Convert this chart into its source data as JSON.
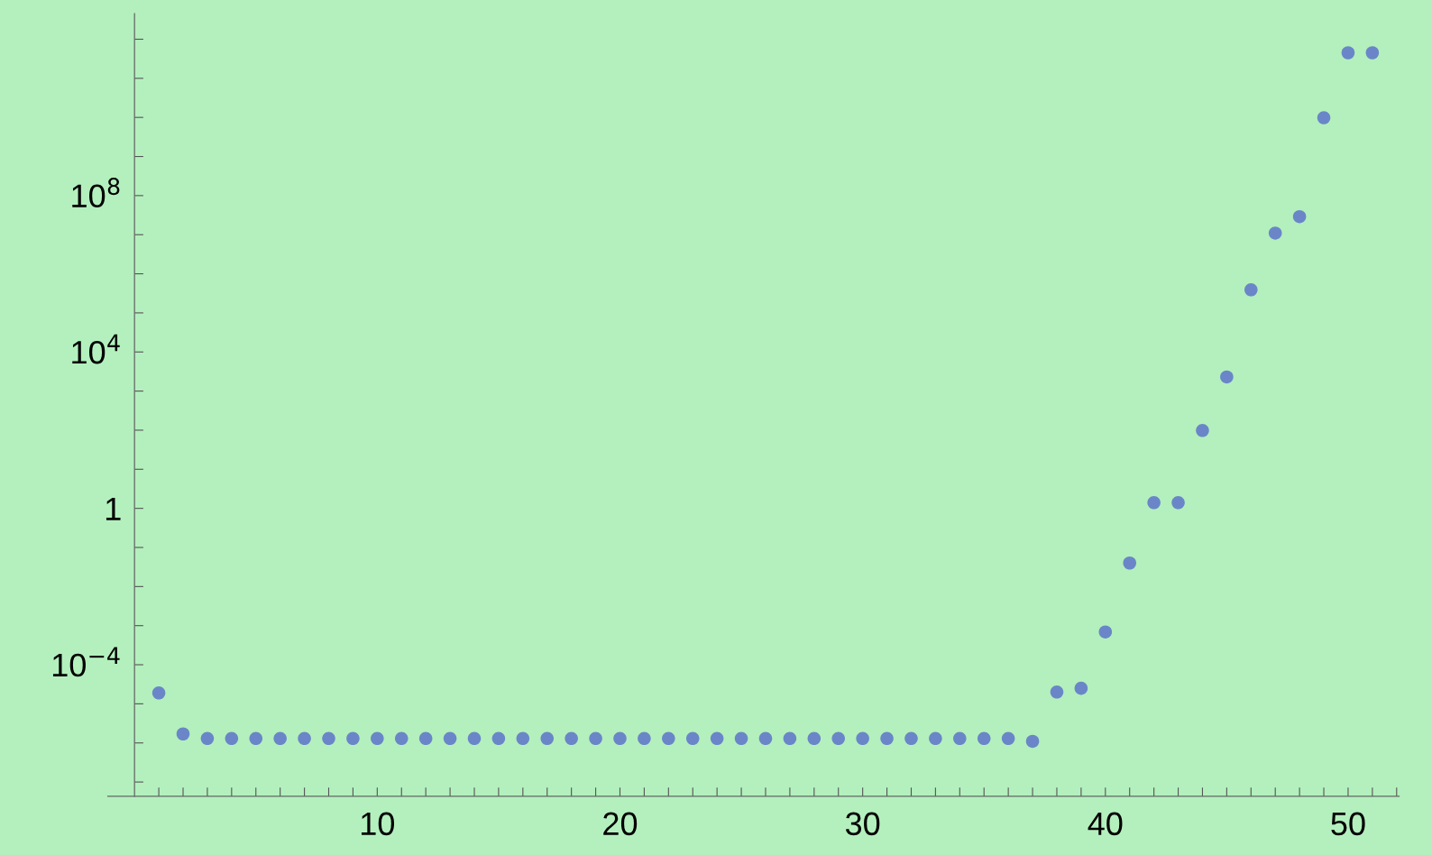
{
  "chart_data": {
    "type": "scatter",
    "marker": "circle",
    "log": "y",
    "grid": false,
    "x": [
      1,
      2,
      3,
      4,
      5,
      6,
      7,
      8,
      9,
      10,
      11,
      12,
      13,
      14,
      15,
      16,
      17,
      18,
      19,
      20,
      21,
      22,
      23,
      24,
      25,
      26,
      27,
      28,
      29,
      30,
      31,
      32,
      33,
      34,
      35,
      36,
      37,
      38,
      39,
      40,
      41,
      42,
      43,
      44,
      45,
      46,
      47,
      48,
      49,
      50,
      51
    ],
    "series": [
      {
        "color": "#6a86c8",
        "values": [
          1.9e-05,
          1.7e-06,
          1.3e-06,
          1.3e-06,
          1.3e-06,
          1.3e-06,
          1.3e-06,
          1.3e-06,
          1.3e-06,
          1.3e-06,
          1.3e-06,
          1.3e-06,
          1.3e-06,
          1.3e-06,
          1.3e-06,
          1.3e-06,
          1.3e-06,
          1.3e-06,
          1.3e-06,
          1.3e-06,
          1.3e-06,
          1.3e-06,
          1.3e-06,
          1.3e-06,
          1.3e-06,
          1.3e-06,
          1.3e-06,
          1.3e-06,
          1.3e-06,
          1.3e-06,
          1.3e-06,
          1.3e-06,
          1.3e-06,
          1.3e-06,
          1.3e-06,
          1.3e-06,
          1.1e-06,
          2e-05,
          2.5e-05,
          0.00069,
          0.04,
          1.4,
          1.4,
          98,
          2300,
          390000.0,
          11000000.0,
          29000000.0,
          9800000000.0,
          450000000000.0,
          450000000000.0
        ]
      }
    ],
    "xlim": [
      -1.1,
      52.1
    ],
    "xticks": [
      {
        "value": 1,
        "label": null
      },
      {
        "value": 2,
        "label": null
      },
      {
        "value": 3,
        "label": null
      },
      {
        "value": 4,
        "label": null
      },
      {
        "value": 5,
        "label": null
      },
      {
        "value": 6,
        "label": null
      },
      {
        "value": 7,
        "label": null
      },
      {
        "value": 8,
        "label": null
      },
      {
        "value": 9,
        "label": null
      },
      10,
      {
        "value": 11,
        "label": null
      },
      {
        "value": 12,
        "label": null
      },
      {
        "value": 13,
        "label": null
      },
      {
        "value": 14,
        "label": null
      },
      {
        "value": 15,
        "label": null
      },
      {
        "value": 16,
        "label": null
      },
      {
        "value": 17,
        "label": null
      },
      {
        "value": 18,
        "label": null
      },
      {
        "value": 19,
        "label": null
      },
      20,
      {
        "value": 21,
        "label": null
      },
      {
        "value": 22,
        "label": null
      },
      {
        "value": 23,
        "label": null
      },
      {
        "value": 24,
        "label": null
      },
      {
        "value": 25,
        "label": null
      },
      {
        "value": 26,
        "label": null
      },
      {
        "value": 27,
        "label": null
      },
      {
        "value": 28,
        "label": null
      },
      {
        "value": 29,
        "label": null
      },
      30,
      {
        "value": 31,
        "label": null
      },
      {
        "value": 32,
        "label": null
      },
      {
        "value": 33,
        "label": null
      },
      {
        "value": 34,
        "label": null
      },
      {
        "value": 35,
        "label": null
      },
      {
        "value": 36,
        "label": null
      },
      {
        "value": 37,
        "label": null
      },
      {
        "value": 38,
        "label": null
      },
      {
        "value": 39,
        "label": null
      },
      40,
      {
        "value": 41,
        "label": null
      },
      {
        "value": 42,
        "label": null
      },
      {
        "value": 43,
        "label": null
      },
      {
        "value": 44,
        "label": null
      },
      {
        "value": 45,
        "label": null
      },
      {
        "value": 46,
        "label": null
      },
      {
        "value": 47,
        "label": null
      },
      {
        "value": 48,
        "label": null
      },
      {
        "value": 49,
        "label": null
      },
      50,
      {
        "value": 51,
        "label": null
      },
      {
        "value": 52,
        "label": null
      }
    ],
    "ylim": [
      4.3e-08,
      4500000000000.0
    ],
    "yticks": [
      {
        "value": 1e-07,
        "label": null
      },
      {
        "value": 1e-06,
        "label": null
      },
      {
        "value": 1e-05,
        "label": null
      },
      {
        "value": 0.0001,
        "label": "10$^{−4}$"
      },
      {
        "value": 0.001,
        "label": null
      },
      {
        "value": 0.01,
        "label": null
      },
      {
        "value": 0.1,
        "label": null
      },
      1,
      {
        "value": 10,
        "label": null
      },
      {
        "value": 100,
        "label": null
      },
      {
        "value": 1000,
        "label": null
      },
      {
        "value": 10000.0,
        "label": "10$^{4}$"
      },
      {
        "value": 100000.0,
        "label": null
      },
      {
        "value": 1000000.0,
        "label": null
      },
      {
        "value": 10000000.0,
        "label": null
      },
      {
        "value": 100000000.0,
        "label": "10$^{8}$"
      },
      {
        "value": 1000000000.0,
        "label": null
      },
      {
        "value": 10000000000.0,
        "label": null
      },
      {
        "value": 100000000000.0,
        "label": null
      },
      {
        "value": 1000000000000.0,
        "label": null
      }
    ]
  }
}
